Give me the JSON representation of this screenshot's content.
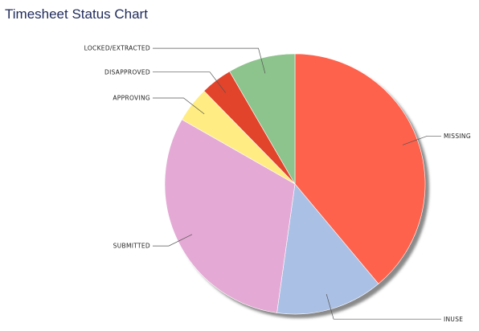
{
  "chart_data": {
    "type": "pie",
    "title": "Timesheet Status Chart",
    "slices": [
      {
        "label": "MISSING",
        "value": 39.5,
        "color": "#fe624c"
      },
      {
        "label": "INUSE",
        "value": 13.5,
        "color": "#abc0e5"
      },
      {
        "label": "SUBMITTED",
        "value": 31.5,
        "color": "#e4aad5"
      },
      {
        "label": "APPROVING",
        "value": 4.5,
        "color": "#ffec82"
      },
      {
        "label": "DISAPPROVED",
        "value": 4.0,
        "color": "#e2432b"
      },
      {
        "label": "LOCKED/EXTRACTED",
        "value": 8.5,
        "color": "#8dc38c"
      }
    ]
  }
}
